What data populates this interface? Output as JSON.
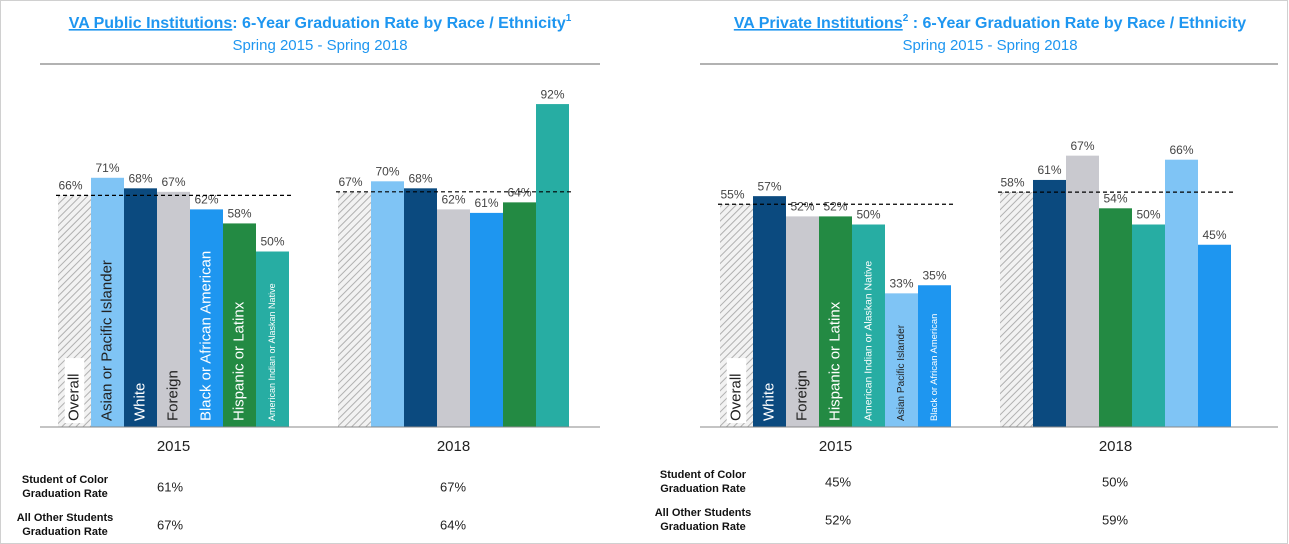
{
  "charts": [
    {
      "chart_data": {
        "type": "bar",
        "title_link": "VA Public Institutions",
        "title_rest": ": 6-Year Graduation Rate by Race / Ethnicity",
        "title_note": "1",
        "subtitle": "Spring 2015 - Spring 2018",
        "categories": [
          "2015",
          "2018"
        ],
        "ylim": [
          0,
          100
        ],
        "series": [
          {
            "name": "Overall",
            "color": "#bfbfbf",
            "pattern": "hatch",
            "values": [
              66,
              67
            ],
            "value_labels": [
              "66%",
              "67%"
            ]
          },
          {
            "name": "Asian or Pacific Islander",
            "color": "#7fc4f5",
            "values": [
              71,
              70
            ],
            "value_labels": [
              "71%",
              "70%"
            ]
          },
          {
            "name": "White",
            "color": "#0b4a7f",
            "values": [
              68,
              68
            ],
            "value_labels": [
              "68%",
              "68%"
            ]
          },
          {
            "name": "Foreign",
            "color": "#c9c9cf",
            "values": [
              67,
              62
            ],
            "value_labels": [
              "67%",
              "62%"
            ]
          },
          {
            "name": "Black or African American",
            "color": "#1e96f0",
            "values": [
              62,
              61
            ],
            "value_labels": [
              "62%",
              "61%"
            ]
          },
          {
            "name": "Hispanic or Latinx",
            "color": "#238a43",
            "values": [
              58,
              64
            ],
            "value_labels": [
              "58%",
              "64%"
            ]
          },
          {
            "name": "American Indian or Alaskan Native",
            "color": "#27ada3",
            "values": [
              50,
              92
            ],
            "value_labels": [
              "50%",
              "92%"
            ]
          }
        ],
        "table": [
          {
            "label": "Student of Color Graduation Rate",
            "cells": [
              "61%",
              "67%"
            ]
          },
          {
            "label": "All Other Students Graduation Rate",
            "cells": [
              "67%",
              "64%"
            ]
          }
        ]
      }
    },
    {
      "chart_data": {
        "type": "bar",
        "title_link": "VA Private Institutions",
        "title_note": "2",
        "title_rest": " : 6-Year Graduation Rate by Race / Ethnicity",
        "subtitle": "Spring 2015 - Spring 2018",
        "categories": [
          "2015",
          "2018"
        ],
        "ylim": [
          0,
          100
        ],
        "series": [
          {
            "name": "Overall",
            "color": "#bfbfbf",
            "pattern": "hatch",
            "values": [
              55,
              58
            ],
            "value_labels": [
              "55%",
              "58%"
            ]
          },
          {
            "name": "White",
            "color": "#0b4a7f",
            "values": [
              57,
              61
            ],
            "value_labels": [
              "57%",
              "61%"
            ]
          },
          {
            "name": "Foreign",
            "color": "#c9c9cf",
            "values": [
              52,
              67
            ],
            "value_labels": [
              "52%",
              "67%"
            ]
          },
          {
            "name": "Hispanic or Latinx",
            "color": "#238a43",
            "values": [
              52,
              54
            ],
            "value_labels": [
              "52%",
              "54%"
            ]
          },
          {
            "name": "American Indian or Alaskan Native",
            "color": "#27ada3",
            "values": [
              50,
              50
            ],
            "value_labels": [
              "50%",
              "50%"
            ]
          },
          {
            "name": "Asian Pacific Islander",
            "color": "#7fc4f5",
            "values": [
              33,
              66
            ],
            "value_labels": [
              "33%",
              "66%"
            ]
          },
          {
            "name": "Black or African American",
            "color": "#1e96f0",
            "values": [
              35,
              45
            ],
            "value_labels": [
              "35%",
              "45%"
            ]
          }
        ],
        "table": [
          {
            "label": "Student of Color Graduation Rate",
            "cells": [
              "45%",
              "50%"
            ]
          },
          {
            "label": "All Other Students Graduation Rate",
            "cells": [
              "52%",
              "59%"
            ]
          }
        ]
      }
    }
  ]
}
